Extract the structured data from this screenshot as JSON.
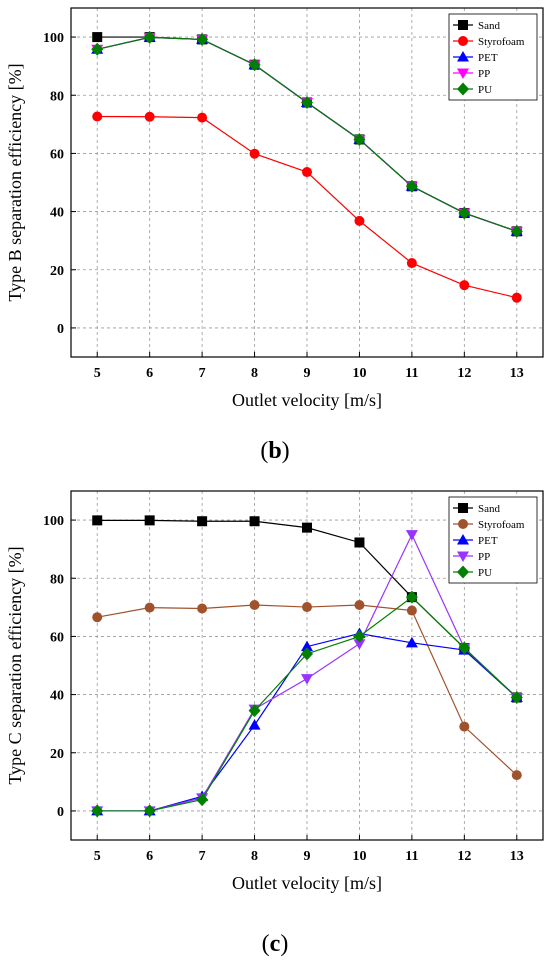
{
  "chart_data": [
    {
      "type": "line",
      "panel_label": "b",
      "xlabel": "Outlet velocity [m/s]",
      "ylabel": "Type B separation efficiency [%]",
      "x": [
        5,
        6,
        7,
        8,
        9,
        10,
        11,
        12,
        13
      ],
      "xlim": [
        4.5,
        13.5
      ],
      "ylim": [
        -10,
        110
      ],
      "xticks": [
        "5",
        "6",
        "7",
        "8",
        "9",
        "10",
        "11",
        "12",
        "13"
      ],
      "yticks": [
        "0",
        "20",
        "40",
        "60",
        "80",
        "100"
      ],
      "grid": true,
      "legend_position": "top-right",
      "series": [
        {
          "name": "Sand",
          "color": "#000000",
          "marker": "square",
          "values": [
            100,
            100,
            99.2,
            90.5,
            77.5,
            64.8,
            48.7,
            39.5,
            33.2
          ]
        },
        {
          "name": "Styrofoam",
          "color": "#ff0000",
          "marker": "circle",
          "values": [
            72.7,
            72.6,
            72.3,
            59.9,
            53.6,
            36.8,
            22.3,
            14.7,
            10.4
          ]
        },
        {
          "name": "PET",
          "color": "#0000ff",
          "marker": "triangle-up",
          "values": [
            95.8,
            99.9,
            99.2,
            90.5,
            77.5,
            64.8,
            48.7,
            39.5,
            33.2
          ]
        },
        {
          "name": "PP",
          "color": "#ff00ff",
          "marker": "triangle-down",
          "values": [
            95.8,
            99.9,
            99.2,
            90.5,
            77.5,
            64.8,
            48.7,
            39.5,
            33.2
          ]
        },
        {
          "name": "PU",
          "color": "#008000",
          "marker": "diamond",
          "values": [
            95.8,
            99.9,
            99.2,
            90.5,
            77.5,
            64.8,
            48.7,
            39.5,
            33.2
          ]
        }
      ]
    },
    {
      "type": "line",
      "panel_label": "c",
      "xlabel": "Outlet velocity [m/s]",
      "ylabel": "Type C separation efficiency [%]",
      "x": [
        5,
        6,
        7,
        8,
        9,
        10,
        11,
        12,
        13
      ],
      "xlim": [
        4.5,
        13.5
      ],
      "ylim": [
        -10,
        110
      ],
      "xticks": [
        "5",
        "6",
        "7",
        "8",
        "9",
        "10",
        "11",
        "12",
        "13"
      ],
      "yticks": [
        "0",
        "20",
        "40",
        "60",
        "80",
        "100"
      ],
      "grid": true,
      "legend_position": "top-right",
      "series": [
        {
          "name": "Sand",
          "color": "#000000",
          "marker": "square",
          "values": [
            99.9,
            99.9,
            99.6,
            99.6,
            97.4,
            92.3,
            73.5,
            56.0,
            39.0
          ]
        },
        {
          "name": "Styrofoam",
          "color": "#a0522d",
          "marker": "circle",
          "values": [
            66.6,
            69.9,
            69.6,
            70.8,
            70.1,
            70.8,
            68.9,
            29.0,
            12.3
          ]
        },
        {
          "name": "PET",
          "color": "#0000ff",
          "marker": "triangle-up",
          "values": [
            0,
            0,
            5.0,
            29.5,
            56.5,
            61.0,
            57.8,
            55.3,
            39.0
          ]
        },
        {
          "name": "PP",
          "color": "#9933ff",
          "marker": "triangle-down",
          "values": [
            0,
            0,
            4.5,
            35.0,
            45.5,
            57.5,
            95.0,
            56.0,
            39.0
          ]
        },
        {
          "name": "PU",
          "color": "#008000",
          "marker": "diamond",
          "values": [
            0,
            0,
            3.9,
            34.5,
            54.0,
            60.0,
            73.5,
            56.0,
            39.0
          ]
        }
      ]
    }
  ]
}
